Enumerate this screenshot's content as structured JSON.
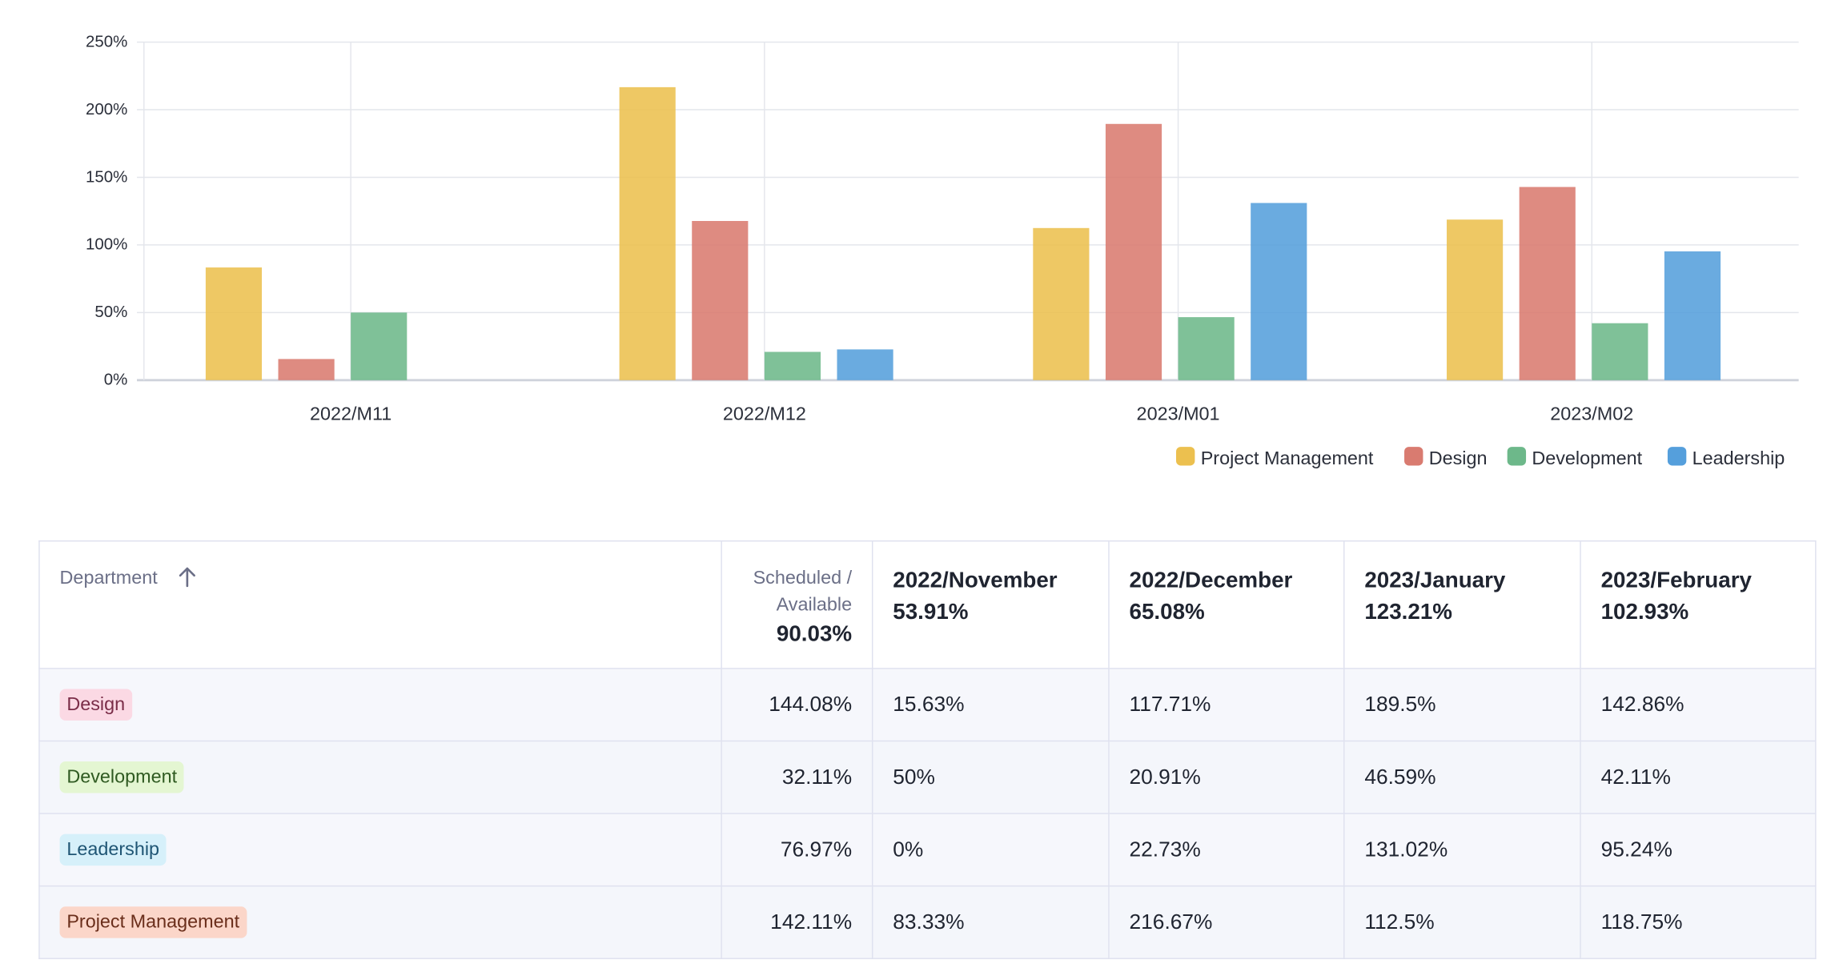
{
  "chart_data": {
    "type": "bar",
    "categories": [
      "2022/M11",
      "2022/M12",
      "2023/M01",
      "2023/M02"
    ],
    "series": [
      {
        "name": "Project Management",
        "color": "#ecc04f",
        "values": [
          83.33,
          216.67,
          112.5,
          118.75
        ]
      },
      {
        "name": "Design",
        "color": "#d97b70",
        "values": [
          15.63,
          117.71,
          189.5,
          142.86
        ]
      },
      {
        "name": "Development",
        "color": "#6db88a",
        "values": [
          50,
          20.91,
          46.59,
          42.11
        ]
      },
      {
        "name": "Leadership",
        "color": "#559fdc",
        "values": [
          0,
          22.73,
          131.02,
          95.24
        ]
      }
    ],
    "ylim": [
      0,
      250
    ],
    "yticks": [
      "0%",
      "50%",
      "100%",
      "150%",
      "200%",
      "250%"
    ],
    "grid": true,
    "legend_position": "bottom-right"
  },
  "table": {
    "department_header": "Department",
    "sort_icon": "arrow-up-icon",
    "scheduled_label_line1": "Scheduled /",
    "scheduled_label_line2": "Available",
    "scheduled_total": "90.03%",
    "months": [
      {
        "label": "2022/November",
        "total": "53.91%"
      },
      {
        "label": "2022/December",
        "total": "65.08%"
      },
      {
        "label": "2023/January",
        "total": "123.21%"
      },
      {
        "label": "2023/February",
        "total": "102.93%"
      }
    ],
    "rows": [
      {
        "department": "Design",
        "chip_bg": "#fbd9e4",
        "chip_fg": "#7a2d48",
        "scheduled": "144.08%",
        "values": [
          "15.63%",
          "117.71%",
          "189.5%",
          "142.86%"
        ]
      },
      {
        "department": "Development",
        "chip_bg": "#e4f6d2",
        "chip_fg": "#2f5a21",
        "scheduled": "32.11%",
        "values": [
          "50%",
          "20.91%",
          "46.59%",
          "42.11%"
        ]
      },
      {
        "department": "Leadership",
        "chip_bg": "#d6f0fa",
        "chip_fg": "#1f5574",
        "scheduled": "76.97%",
        "values": [
          "0%",
          "22.73%",
          "131.02%",
          "95.24%"
        ]
      },
      {
        "department": "Project Management",
        "chip_bg": "#fbd6c9",
        "chip_fg": "#6a2e1b",
        "scheduled": "142.11%",
        "values": [
          "83.33%",
          "216.67%",
          "112.5%",
          "118.75%"
        ]
      }
    ]
  }
}
